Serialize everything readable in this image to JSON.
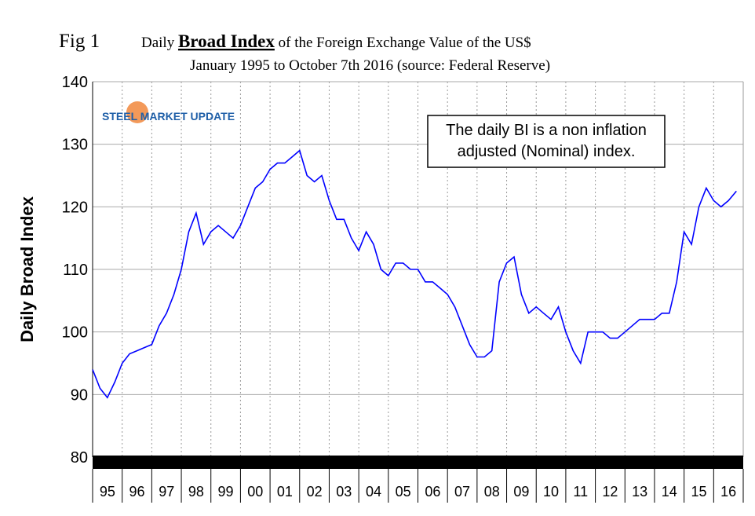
{
  "chart_data": {
    "type": "line",
    "fig_label": "Fig 1",
    "title_parts": [
      "Daily",
      "Broad Index",
      "of the Foreign Exchange Value of the US$"
    ],
    "subtitle": "January 1995 to October 7th 2016 (source: Federal Reserve)",
    "ylabel": "Daily Broad Index",
    "logo": "STEEL MARKET UPDATE",
    "annotation": [
      "The daily BI is a non inflation",
      "adjusted (Nominal) index."
    ],
    "color": "#0000ff",
    "grid": true,
    "x": [
      1995,
      1995.25,
      1995.5,
      1995.75,
      1996,
      1996.25,
      1996.5,
      1996.75,
      1997,
      1997.25,
      1997.5,
      1997.75,
      1998,
      1998.25,
      1998.5,
      1998.75,
      1999,
      1999.25,
      1999.5,
      1999.75,
      2000,
      2000.25,
      2000.5,
      2000.75,
      2001,
      2001.25,
      2001.5,
      2001.75,
      2002,
      2002.25,
      2002.5,
      2002.75,
      2003,
      2003.25,
      2003.5,
      2003.75,
      2004,
      2004.25,
      2004.5,
      2004.75,
      2005,
      2005.25,
      2005.5,
      2005.75,
      2006,
      2006.25,
      2006.5,
      2006.75,
      2007,
      2007.25,
      2007.5,
      2007.75,
      2008,
      2008.25,
      2008.5,
      2008.75,
      2009,
      2009.25,
      2009.5,
      2009.75,
      2010,
      2010.25,
      2010.5,
      2010.75,
      2011,
      2011.25,
      2011.5,
      2011.75,
      2012,
      2012.25,
      2012.5,
      2012.75,
      2013,
      2013.25,
      2013.5,
      2013.75,
      2014,
      2014.25,
      2014.5,
      2014.75,
      2015,
      2015.25,
      2015.5,
      2015.75,
      2016,
      2016.25,
      2016.5,
      2016.77
    ],
    "values": [
      94,
      91,
      89.5,
      92,
      95,
      96.5,
      97,
      97.5,
      98,
      101,
      103,
      106,
      110,
      116,
      119,
      114,
      116,
      117,
      116,
      115,
      117,
      120,
      123,
      124,
      126,
      127,
      127,
      128,
      129,
      125,
      124,
      125,
      121,
      118,
      118,
      115,
      113,
      116,
      114,
      110,
      109,
      111,
      111,
      110,
      110,
      108,
      108,
      107,
      106,
      104,
      101,
      98,
      96,
      96,
      97,
      108,
      111,
      112,
      106,
      103,
      104,
      103,
      102,
      104,
      100,
      97,
      95,
      100,
      100,
      100,
      99,
      99,
      100,
      101,
      102,
      102,
      102,
      103,
      103,
      108,
      116,
      114,
      120,
      123,
      121,
      120,
      121,
      122.5
    ],
    "xlim": [
      1995,
      2017
    ],
    "xticks": [
      {
        "value": 1995.5,
        "label": "95"
      },
      {
        "value": 1996.5,
        "label": "96"
      },
      {
        "value": 1997.5,
        "label": "97"
      },
      {
        "value": 1998.5,
        "label": "98"
      },
      {
        "value": 1999.5,
        "label": "99"
      },
      {
        "value": 2000.5,
        "label": "00"
      },
      {
        "value": 2001.5,
        "label": "01"
      },
      {
        "value": 2002.5,
        "label": "02"
      },
      {
        "value": 2003.5,
        "label": "03"
      },
      {
        "value": 2004.5,
        "label": "04"
      },
      {
        "value": 2005.5,
        "label": "05"
      },
      {
        "value": 2006.5,
        "label": "06"
      },
      {
        "value": 2007.5,
        "label": "07"
      },
      {
        "value": 2008.5,
        "label": "08"
      },
      {
        "value": 2009.5,
        "label": "09"
      },
      {
        "value": 2010.5,
        "label": "10"
      },
      {
        "value": 2011.5,
        "label": "11"
      },
      {
        "value": 2012.5,
        "label": "12"
      },
      {
        "value": 2013.5,
        "label": "13"
      },
      {
        "value": 2014.5,
        "label": "14"
      },
      {
        "value": 2015.5,
        "label": "15"
      },
      {
        "value": 2016.5,
        "label": "16"
      }
    ],
    "ylim": [
      80,
      140
    ],
    "yticks": [
      80,
      90,
      100,
      110,
      120,
      130,
      140
    ]
  }
}
